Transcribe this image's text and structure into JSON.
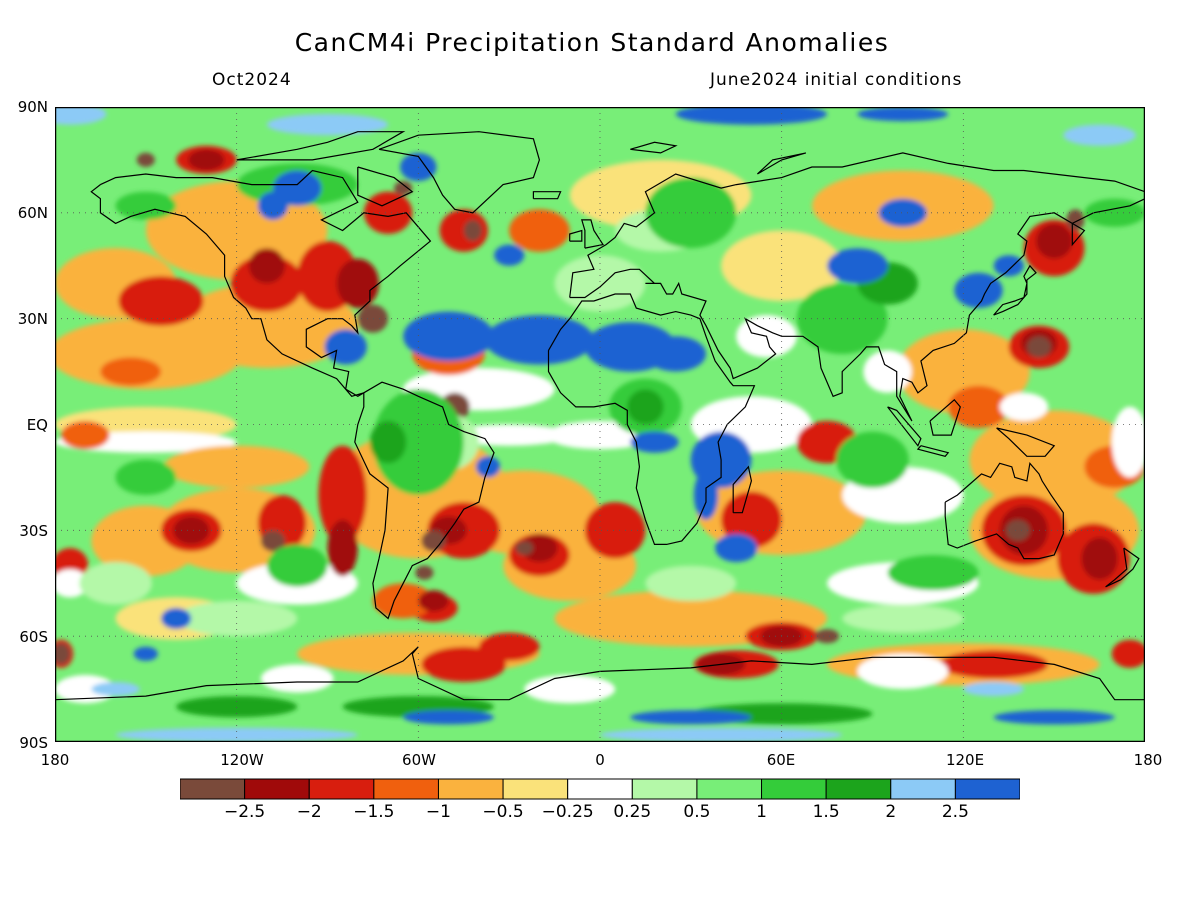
{
  "title": "CanCM4i Precipitation Standard Anomalies",
  "valid_month": "Oct2024",
  "init_label": "June2024 initial conditions",
  "lat_labels": [
    "90N",
    "60N",
    "30N",
    "EQ",
    "30S",
    "60S",
    "90S"
  ],
  "lon_labels": [
    "180",
    "120W",
    "60W",
    "0",
    "60E",
    "120E",
    "180"
  ],
  "colorbar": {
    "colors": [
      "#7a4a3a",
      "#a00a0a",
      "#d81e0e",
      "#f0600e",
      "#fab23e",
      "#fae27a",
      "#ffffff",
      "#b4f8a8",
      "#78ee78",
      "#34cc3a",
      "#1ca41c",
      "#8ccaf6",
      "#1e62d2"
    ],
    "labels": [
      "−2.5",
      "−2",
      "−1.5",
      "−1",
      "−0.5",
      "−0.25",
      "0.25",
      "0.5",
      "1",
      "1.5",
      "2",
      "2.5"
    ]
  },
  "map": {
    "projection": "equirectangular",
    "coastlines": true,
    "gridlines": "dotted"
  }
}
